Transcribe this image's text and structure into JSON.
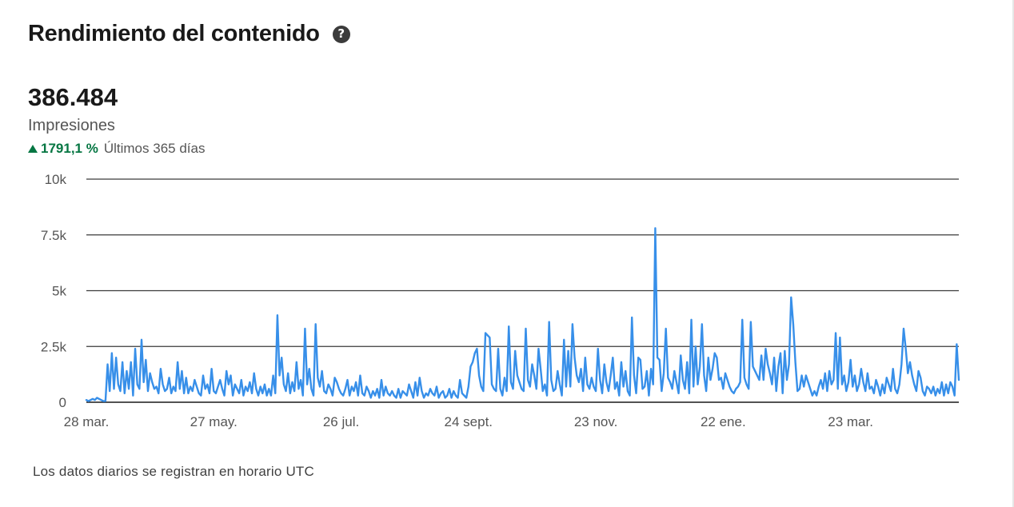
{
  "header": {
    "title": "Rendimiento del contenido",
    "help_icon": "question-circle-icon"
  },
  "metric": {
    "value": "386.484",
    "label": "Impresiones",
    "change_icon": "triangle-up-icon",
    "change_value": "1791,1 %",
    "change_period": "Últimos 365 días",
    "change_color": "#057642"
  },
  "footnote": "Los datos diarios se registran en horario UTC",
  "chart_data": {
    "type": "line",
    "title": "",
    "xlabel": "",
    "ylabel": "",
    "ylim": [
      0,
      10000
    ],
    "grid": true,
    "line_color": "#378fe9",
    "yticks": [
      {
        "value": 0,
        "label": "0"
      },
      {
        "value": 2500,
        "label": "2.5k"
      },
      {
        "value": 5000,
        "label": "5k"
      },
      {
        "value": 7500,
        "label": "7.5k"
      },
      {
        "value": 10000,
        "label": "10k"
      }
    ],
    "xticks": [
      {
        "day": 0,
        "label": "28 mar."
      },
      {
        "day": 60,
        "label": "27 may."
      },
      {
        "day": 120,
        "label": "26 jul."
      },
      {
        "day": 180,
        "label": "24 sept."
      },
      {
        "day": 240,
        "label": "23 nov."
      },
      {
        "day": 300,
        "label": "22 ene."
      },
      {
        "day": 360,
        "label": "23 mar."
      }
    ],
    "series": [
      {
        "values": [
          100,
          50,
          100,
          150,
          100,
          200,
          150,
          100,
          50,
          50,
          1700,
          500,
          2200,
          600,
          2000,
          800,
          500,
          1800,
          400,
          1400,
          600,
          1800,
          300,
          2400,
          800,
          600,
          2800,
          900,
          1900,
          500,
          1300,
          900,
          600,
          700,
          400,
          1500,
          800,
          500,
          600,
          1100,
          400,
          700,
          500,
          1800,
          600,
          1400,
          400,
          1100,
          400,
          700,
          500,
          1000,
          700,
          400,
          300,
          1200,
          600,
          800,
          400,
          1500,
          500,
          400,
          700,
          1000,
          600,
          300,
          1400,
          800,
          1200,
          300,
          800,
          600,
          400,
          1000,
          300,
          700,
          500,
          900,
          400,
          1300,
          600,
          300,
          700,
          400,
          800,
          300,
          600,
          300,
          1200,
          400,
          3900,
          1200,
          2000,
          800,
          500,
          1300,
          400,
          900,
          500,
          1800,
          600,
          1000,
          300,
          3300,
          800,
          1500,
          600,
          300,
          3500,
          1100,
          700,
          1400,
          500,
          400,
          800,
          600,
          300,
          1100,
          900,
          600,
          400,
          300,
          600,
          1000,
          300,
          700,
          500,
          900,
          300,
          1200,
          400,
          300,
          700,
          500,
          200,
          500,
          300,
          600,
          200,
          1000,
          300,
          700,
          400,
          300,
          500,
          300,
          200,
          600,
          200,
          500,
          400,
          300,
          800,
          500,
          200,
          900,
          300,
          1100,
          500,
          200,
          400,
          300,
          600,
          400,
          300,
          700,
          200,
          400,
          500,
          200,
          300,
          600,
          200,
          500,
          300,
          200,
          1000,
          400,
          300,
          200,
          700,
          1600,
          1800,
          2200,
          2400,
          1200,
          700,
          500,
          3100,
          3000,
          2900,
          800,
          600,
          500,
          2400,
          600,
          300,
          1100,
          500,
          3400,
          900,
          600,
          2300,
          1200,
          900,
          600,
          500,
          3300,
          1000,
          700,
          1700,
          1200,
          600,
          2400,
          1500,
          500,
          800,
          300,
          3600,
          1000,
          500,
          600,
          1400,
          800,
          300,
          2800,
          700,
          2300,
          700,
          3500,
          2000,
          1200,
          900,
          1500,
          500,
          2000,
          800,
          600,
          1100,
          700,
          500,
          2400,
          1000,
          400,
          1700,
          900,
          500,
          1200,
          2000,
          600,
          900,
          300,
          1800,
          700,
          1400,
          500,
          300,
          3800,
          1200,
          400,
          2000,
          1900,
          600,
          700,
          1400,
          300,
          1500,
          800,
          7800,
          2000,
          1900,
          500,
          1300,
          3300,
          1100,
          900,
          600,
          1400,
          900,
          400,
          2100,
          1000,
          600,
          1800,
          400,
          3700,
          700,
          2500,
          800,
          1600,
          3500,
          1200,
          500,
          2000,
          1000,
          1500,
          2200,
          2000,
          1000,
          1100,
          600,
          1300,
          1000,
          700,
          500,
          400,
          600,
          700,
          900,
          3700,
          1100,
          800,
          600,
          3600,
          1600,
          1400,
          1200,
          1000,
          2100,
          1000,
          2400,
          1700,
          1300,
          800,
          2000,
          500,
          1600,
          2200,
          400,
          2300,
          1000,
          1700,
          4700,
          3500,
          1800,
          500,
          600,
          1200,
          700,
          1200,
          900,
          600,
          300,
          500,
          300,
          700,
          1000,
          600,
          1300,
          500,
          1400,
          800,
          1000,
          3100,
          600,
          2900,
          800,
          1200,
          500,
          900,
          1900,
          700,
          1200,
          500,
          800,
          1500,
          900,
          500,
          1300,
          600,
          700,
          400,
          1000,
          700,
          300,
          800,
          400,
          1100,
          800,
          500,
          1500,
          600,
          400,
          800,
          1700,
          3300,
          2400,
          1300,
          1800,
          1200,
          800,
          500,
          1400,
          1100,
          500,
          300,
          700,
          600,
          400,
          700,
          300,
          600,
          400,
          900,
          300,
          800,
          400,
          900,
          700,
          300,
          2600,
          1000
        ]
      }
    ]
  }
}
